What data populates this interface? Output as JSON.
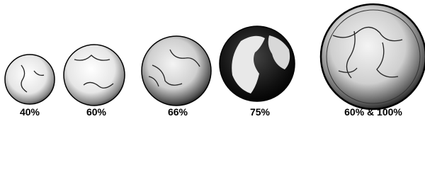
{
  "items": [
    {
      "label": "40%"
    },
    {
      "label": "60%"
    },
    {
      "label": "66%"
    },
    {
      "label": "75%"
    },
    {
      "label": "60% & 100%"
    }
  ]
}
